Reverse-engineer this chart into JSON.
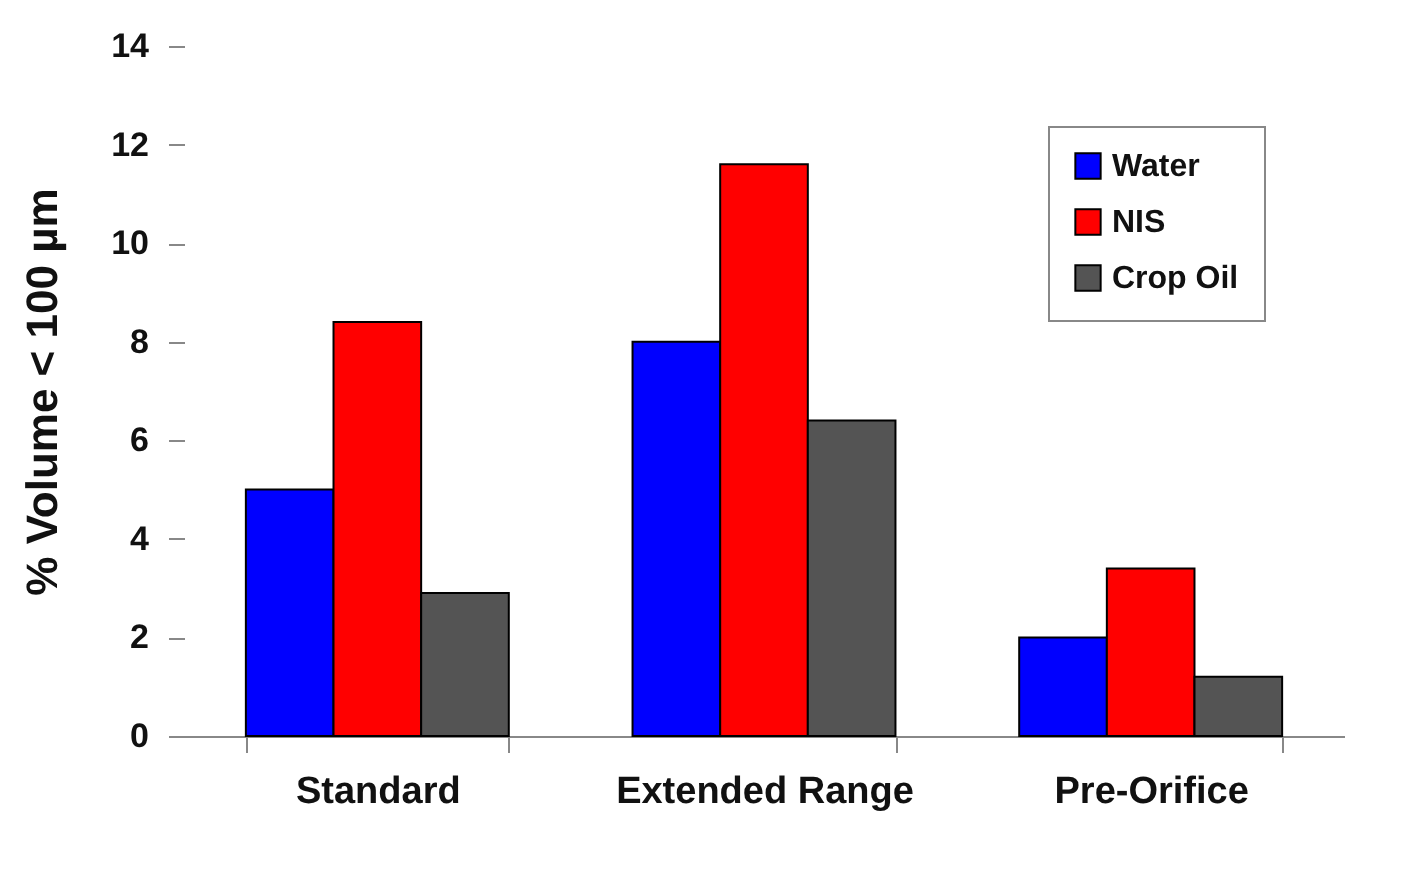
{
  "chart_data": {
    "type": "bar",
    "ylabel": "% Volume < 100 µm",
    "categories": [
      "Standard",
      "Extended Range",
      "Pre-Orifice"
    ],
    "series": [
      {
        "name": "Water",
        "color": "#0000ff",
        "values": [
          5.0,
          8.0,
          2.0
        ]
      },
      {
        "name": "NIS",
        "color": "#ff0000",
        "values": [
          8.4,
          11.6,
          3.4
        ]
      },
      {
        "name": "Crop Oil",
        "color": "#545454",
        "values": [
          2.9,
          6.4,
          1.2
        ]
      }
    ],
    "ylim": [
      0,
      14
    ],
    "yticks": [
      0,
      2,
      4,
      6,
      8,
      10,
      12,
      14
    ],
    "grid": false,
    "legend": "top right"
  }
}
